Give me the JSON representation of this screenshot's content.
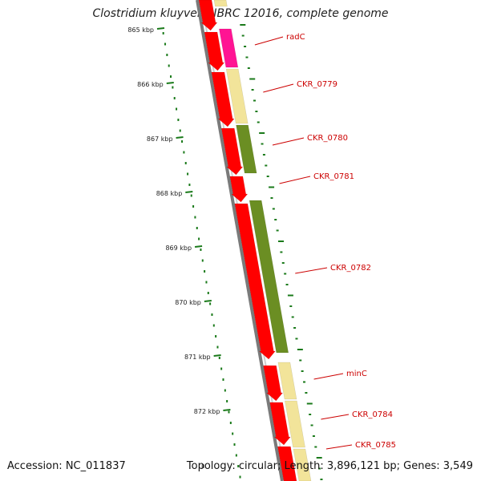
{
  "title": "Clostridium kluyveri NBRC 12016, complete genome",
  "accession": "Accession: NC_011837",
  "topology": "Topology: circular; Length: 3,896,121 bp; Genes: 3,549",
  "edge_tick": "8",
  "colors": {
    "backbone": "#8a8a8a",
    "cds": "#ff0000",
    "rrna_magenta": "#ff1493",
    "cog_yellow": "#f2e49a",
    "cog_olive": "#6b8e23",
    "ruler": "#1a7a1a",
    "label": "#cc0000"
  },
  "ruler_labels": [
    "865 kbp",
    "866 kbp",
    "867 kbp",
    "868 kbp",
    "869 kbp",
    "870 kbp",
    "871 kbp",
    "872 kbp"
  ],
  "gene_labels": [
    "radC",
    "CKR_0779",
    "CKR_0780",
    "CKR_0781",
    "CKR_0782",
    "minC",
    "CKR_0784",
    "CKR_0785"
  ]
}
